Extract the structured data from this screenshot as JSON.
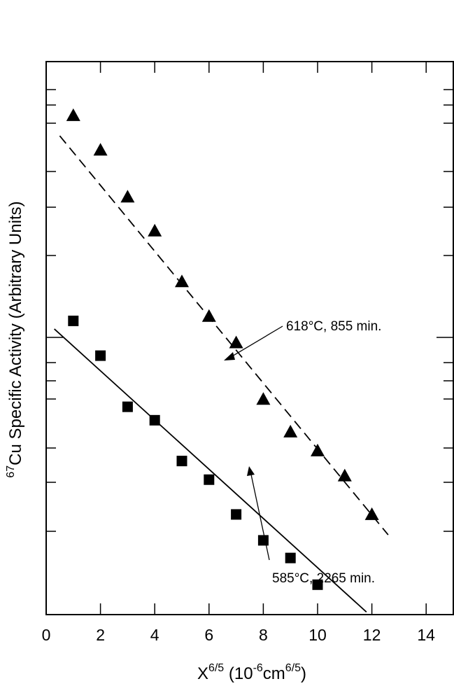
{
  "chart_data": {
    "type": "scatter",
    "title": "",
    "xlabel": {
      "base": "X",
      "exp": "6/5",
      "unit_open": " (10",
      "unit_exp": "-6",
      "unit_mid": "cm",
      "unit_exp2": "6/5",
      "unit_close": ")"
    },
    "ylabel": {
      "iso": "67",
      "text": "Cu Specific Activity (Arbitrary Units)"
    },
    "xlim": [
      0,
      15
    ],
    "xticks": [
      "0",
      "2",
      "4",
      "6",
      "8",
      "10",
      "12",
      "14"
    ],
    "y_scale": "log",
    "y_ticks_shown": false,
    "grid": false,
    "series": [
      {
        "name": "618°C, 855 min.",
        "marker": "triangle",
        "line_style": "dashed",
        "x": [
          1,
          2,
          3,
          4,
          5,
          6,
          7,
          8,
          9,
          10,
          11,
          12
        ],
        "y": [
          3.6,
          2.95,
          2.25,
          1.85,
          1.38,
          1.13,
          0.97,
          0.7,
          0.58,
          0.52,
          0.45,
          0.36
        ],
        "fit": {
          "x": [
            0.5,
            12.6
          ],
          "y": [
            3.2,
            0.32
          ]
        }
      },
      {
        "name": "585°C, 2265 min.",
        "marker": "square",
        "line_style": "solid",
        "x": [
          1,
          2,
          3,
          4,
          5,
          6,
          7,
          8,
          9,
          10
        ],
        "y": [
          1.1,
          0.9,
          0.67,
          0.62,
          0.49,
          0.44,
          0.36,
          0.31,
          0.28,
          0.24
        ],
        "fit": {
          "x": [
            0.3,
            11.8
          ],
          "y": [
            1.05,
            0.205
          ]
        }
      }
    ],
    "annotations": [
      {
        "text": "618°C, 855 min.",
        "series": 0
      },
      {
        "text": "585°C, 2265 min.",
        "series": 1
      }
    ]
  }
}
